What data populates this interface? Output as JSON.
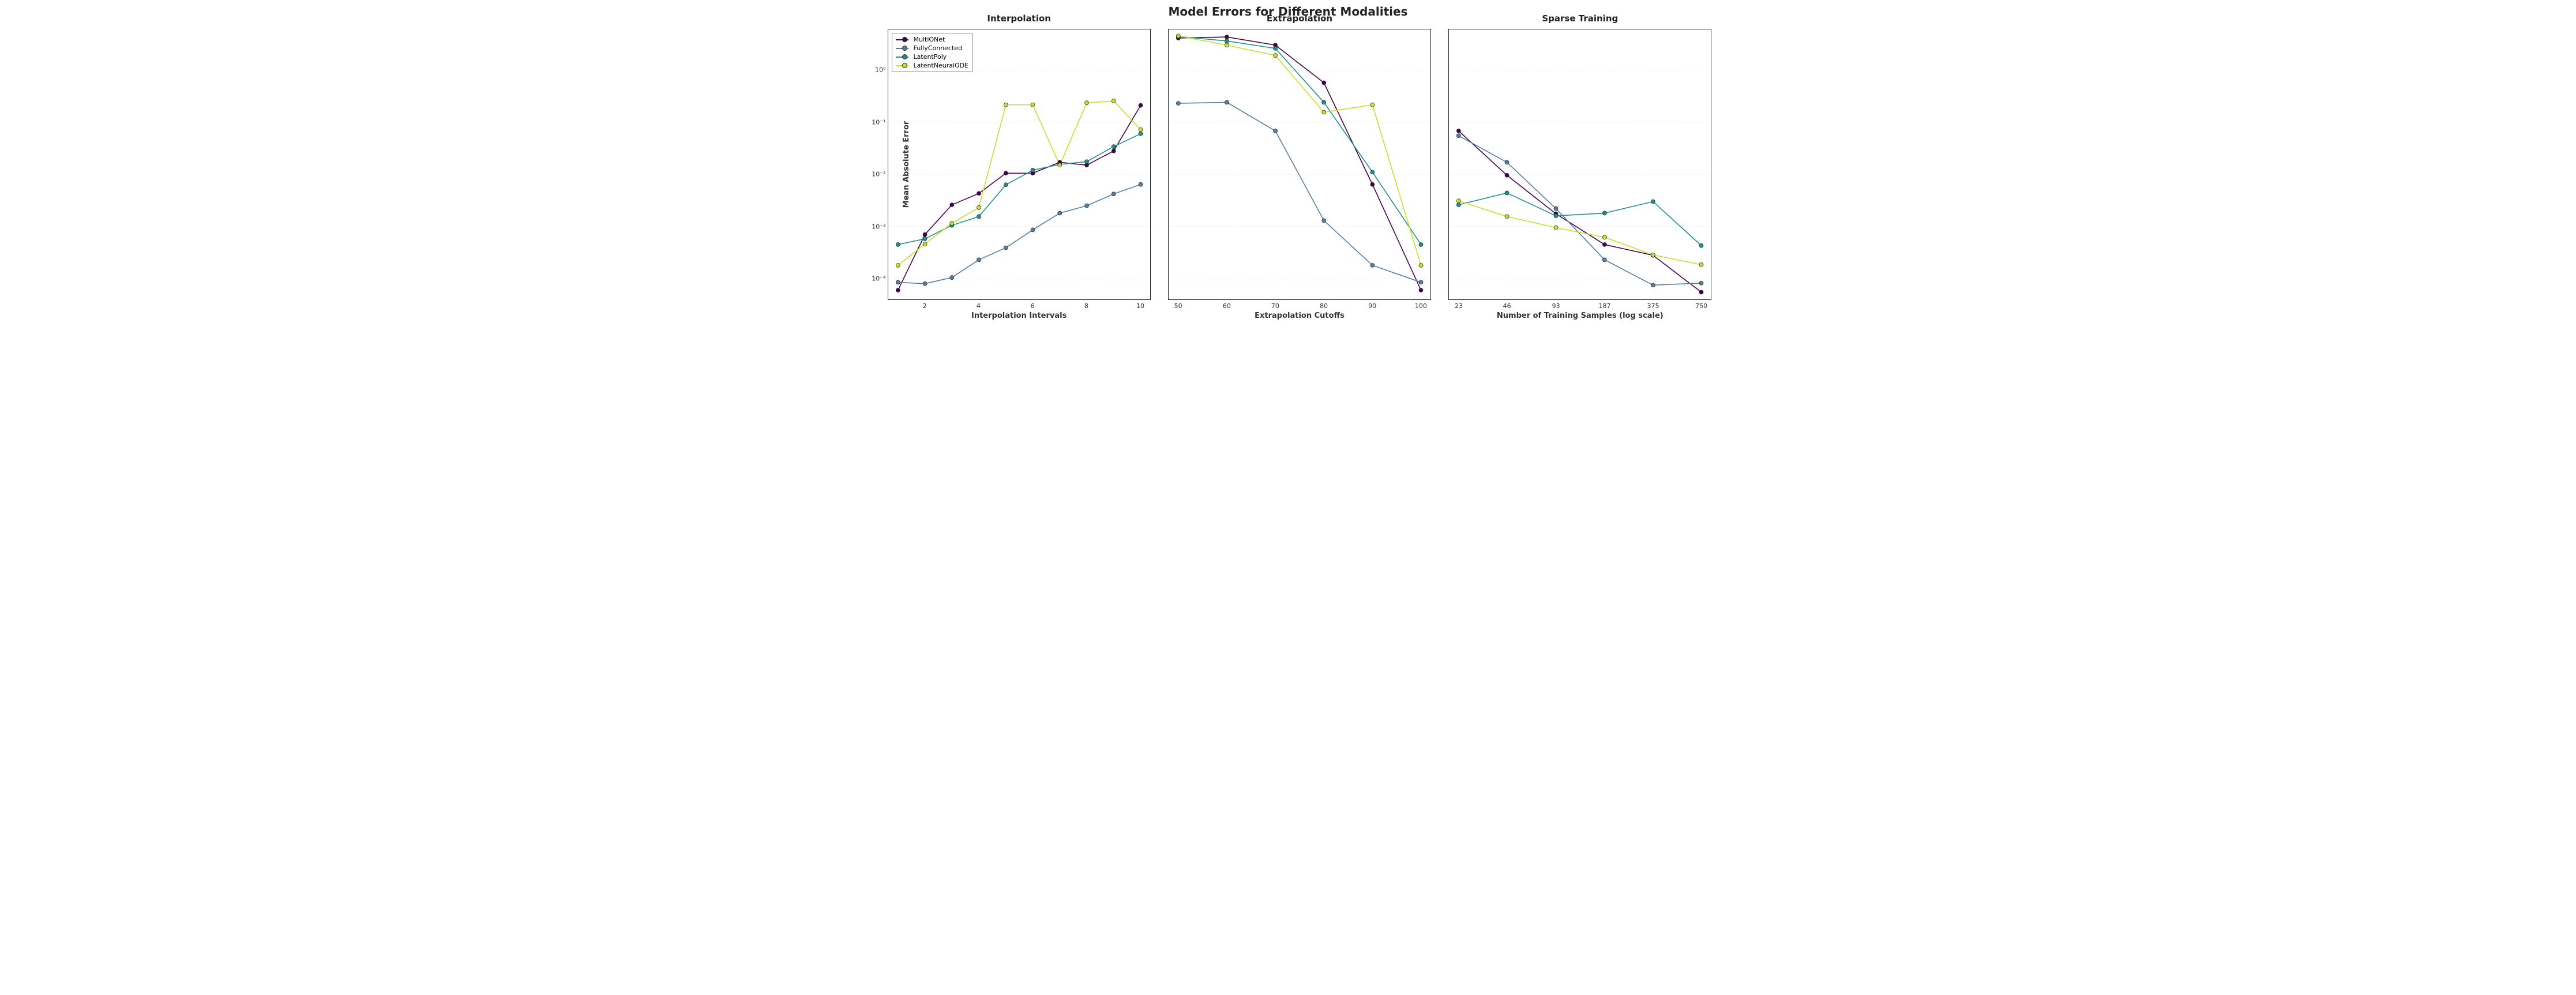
{
  "suptitle": "Model Errors for Different Modalities",
  "suptitle_fontsize": 20,
  "background_color": "#ffffff",
  "grid_color": "#b0b0b0",
  "font_family": "DejaVu Sans",
  "marker": {
    "style": "circle",
    "size": 7,
    "edge_color": "#222222",
    "edge_width": 0.7
  },
  "line_width": 1.6,
  "yaxis": {
    "scale": "log",
    "min": 4e-05,
    "max": 6,
    "ticks": [
      0.0001,
      0.001,
      0.01,
      0.1,
      1.0
    ],
    "tick_labels": [
      "10⁻⁴",
      "10⁻³",
      "10⁻²",
      "10⁻¹",
      "10⁰"
    ],
    "label": "Mean Absolute Error",
    "label_fontsize": 13
  },
  "series_meta": [
    {
      "key": "MultiONet",
      "label": "MultiONet",
      "color": "#440154"
    },
    {
      "key": "FullyConnected",
      "label": "FullyConnected",
      "color": "#577f9f"
    },
    {
      "key": "LatentPoly",
      "label": "LatentPoly",
      "color": "#21918c"
    },
    {
      "key": "LatentNeuralODE",
      "label": "LatentNeuralODE",
      "color": "#c4e02d"
    }
  ],
  "legend": {
    "panel": 0,
    "loc": "upper-left",
    "fontsize": 11,
    "frame_color": "#888888"
  },
  "panels": [
    {
      "title": "Interpolation",
      "title_fontsize": 15,
      "xlabel": "Interpolation Intervals",
      "xlabel_fontsize": 13,
      "xscale": "linear",
      "x": [
        1,
        2,
        3,
        4,
        5,
        6,
        7,
        8,
        9,
        10
      ],
      "xtick_labels": [
        "2",
        "4",
        "6",
        "8",
        "10"
      ],
      "xtick_at": [
        2,
        4,
        6,
        8,
        10
      ],
      "series": {
        "MultiONet": [
          6e-05,
          0.0007,
          0.0026,
          0.0043,
          0.0105,
          0.0105,
          0.017,
          0.015,
          0.028,
          0.21
        ],
        "FullyConnected": [
          8.5e-05,
          8e-05,
          0.000105,
          0.00023,
          0.00039,
          0.00086,
          0.0018,
          0.0025,
          0.0042,
          0.0064
        ],
        "LatentPoly": [
          0.00045,
          0.00058,
          0.00105,
          0.00155,
          0.0063,
          0.012,
          0.0155,
          0.0175,
          0.034,
          0.06
        ],
        "LatentNeuralODE": [
          0.00018,
          0.00046,
          0.00115,
          0.0023,
          0.215,
          0.215,
          0.015,
          0.235,
          0.255,
          0.072
        ]
      }
    },
    {
      "title": "Extrapolation",
      "title_fontsize": 15,
      "xlabel": "Extrapolation Cutoffs",
      "xlabel_fontsize": 13,
      "xscale": "linear",
      "x": [
        50,
        60,
        70,
        80,
        90,
        100
      ],
      "xtick_labels": [
        "50",
        "60",
        "70",
        "80",
        "90",
        "100"
      ],
      "xtick_at": [
        50,
        60,
        70,
        80,
        90,
        100
      ],
      "series": {
        "MultiONet": [
          4.1,
          4.3,
          3.0,
          0.57,
          0.0064,
          6e-05
        ],
        "FullyConnected": [
          0.23,
          0.24,
          0.068,
          0.0013,
          0.00018,
          8.5e-05
        ],
        "LatentPoly": [
          4.4,
          3.6,
          2.6,
          0.24,
          0.011,
          0.00045
        ],
        "LatentNeuralODE": [
          4.5,
          3.0,
          1.9,
          0.155,
          0.215,
          0.00018
        ]
      }
    },
    {
      "title": "Sparse Training",
      "title_fontsize": 15,
      "xlabel": "Number of Training Samples (log scale)",
      "xlabel_fontsize": 13,
      "xscale": "log",
      "x": [
        23,
        46,
        93,
        187,
        375,
        750
      ],
      "xtick_labels": [
        "23",
        "46",
        "93",
        "187",
        "375",
        "750"
      ],
      "xtick_at": [
        23,
        46,
        93,
        187,
        375,
        750
      ],
      "series": {
        "MultiONet": [
          0.068,
          0.0096,
          0.00175,
          0.00045,
          0.00028,
          5.5e-05
        ],
        "FullyConnected": [
          0.055,
          0.017,
          0.0022,
          0.00023,
          7.5e-05,
          8.2e-05
        ],
        "LatentPoly": [
          0.0026,
          0.0044,
          0.0016,
          0.0018,
          0.003,
          0.00043
        ],
        "LatentNeuralODE": [
          0.0031,
          0.00155,
          0.00095,
          0.00062,
          0.000285,
          0.000185
        ]
      }
    }
  ]
}
